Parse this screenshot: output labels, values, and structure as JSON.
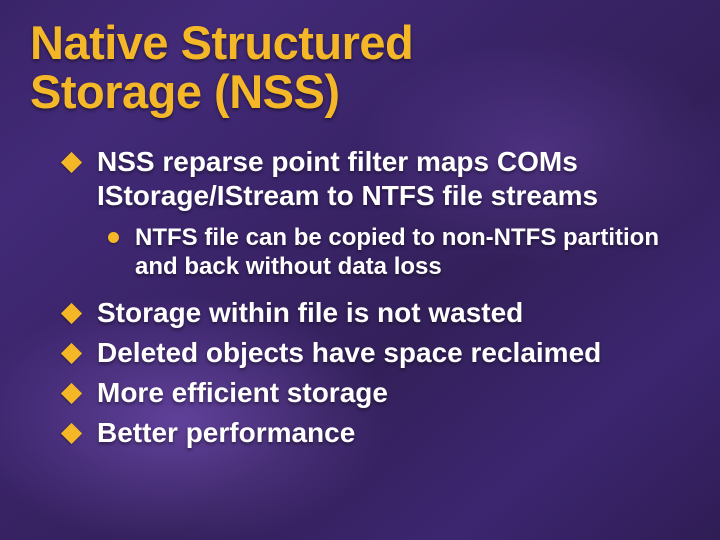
{
  "title_fontsize": 47,
  "lvl1_fontsize": 28,
  "lvl2_fontsize": 24,
  "colors": {
    "title": "#f4b728",
    "bullet_diamond": "#f4b728",
    "bullet_dot": "#f4b728",
    "text": "#ffffff",
    "bg_gradient_stops": [
      "#3a2468",
      "#422a78",
      "#33205a",
      "#3c2670",
      "#2f1d55"
    ]
  },
  "title_line1": "Native Structured",
  "title_line2": "Storage (NSS)",
  "bullets": {
    "b0": "NSS reparse point filter maps COMs IStorage/IStream to NTFS file streams",
    "b0_sub0": "NTFS file can be copied to non-NTFS partition and back without data loss",
    "b1": "Storage within file is not wasted",
    "b2": "Deleted objects have space reclaimed",
    "b3": "More efficient storage",
    "b4": "Better performance"
  }
}
